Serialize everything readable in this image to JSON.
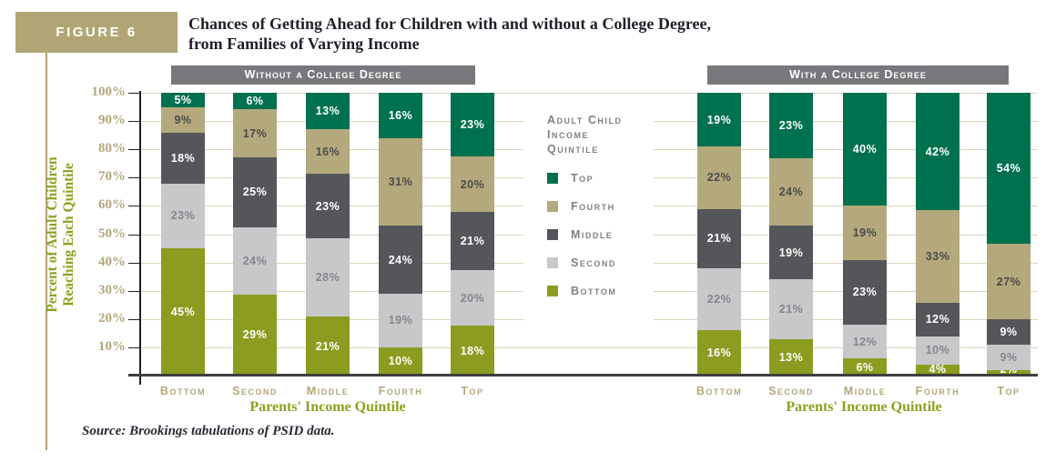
{
  "figure": {
    "label": "FIGURE 6",
    "title_line1": "Chances of Getting Ahead for Children with and without a College Degree,",
    "title_line2": "from Families of Varying Income",
    "source": "Source: Brookings tabulations of PSID data."
  },
  "colors": {
    "figure_box": "#b2a575",
    "panel_header_bg": "#77787b",
    "gridline": "#dbd5bd",
    "axis_line": "#231f20",
    "baseline": "#3f3f41",
    "tick_label": "#b2a77b",
    "axis_title_green": "#8fa01e",
    "legend_text": "#808184",
    "title_text": "#231f2b"
  },
  "chart_data": {
    "type": "bar",
    "stacked": true,
    "units": "percent",
    "title": "Chances of Getting Ahead for Children with and without a College Degree, from Families of Varying Income",
    "ylabel": "Percent of Adult Children Reaching Each Quintile",
    "ylabel_lines": [
      "Percent of Adult Children",
      "Reaching Each Quintile"
    ],
    "ylim": [
      0,
      100
    ],
    "yticks": [
      10,
      20,
      30,
      40,
      50,
      60,
      70,
      80,
      90,
      100
    ],
    "ytick_suffix": "%",
    "grid": true,
    "legend_position": "center-between-panels",
    "legend": {
      "title_lines": [
        "Adult Child",
        "Income",
        "Quintile"
      ],
      "entries": [
        {
          "label": "Top"
        },
        {
          "label": "Fourth"
        },
        {
          "label": "Middle"
        },
        {
          "label": "Second"
        },
        {
          "label": "Bottom"
        }
      ]
    },
    "stack_order_bottom_to_top": [
      "Bottom",
      "Second",
      "Middle",
      "Fourth",
      "Top"
    ],
    "series_colors": {
      "Bottom": "#8b9c20",
      "Second": "#c7c8ca",
      "Middle": "#55565a",
      "Fourth": "#b4a97c",
      "Top": "#00714f"
    },
    "value_label_colors": {
      "Bottom": "#ffffff",
      "Second": "#85868a",
      "Middle": "#ffffff",
      "Fourth": "#4a4b4d",
      "Top": "#ffffff"
    },
    "panels": [
      {
        "header": "Without a College Degree",
        "xlabel": "Parents' Income Quintile",
        "categories": [
          "Bottom",
          "Second",
          "Middle",
          "Fourth",
          "Top"
        ],
        "series": [
          {
            "name": "Bottom",
            "values": [
              45,
              29,
              21,
              10,
              18
            ]
          },
          {
            "name": "Second",
            "values": [
              23,
              24,
              28,
              19,
              20
            ]
          },
          {
            "name": "Middle",
            "values": [
              18,
              25,
              23,
              24,
              21
            ]
          },
          {
            "name": "Fourth",
            "values": [
              9,
              17,
              16,
              31,
              20
            ]
          },
          {
            "name": "Top",
            "values": [
              5,
              6,
              13,
              16,
              23
            ]
          }
        ]
      },
      {
        "header": "With a College Degree",
        "xlabel": "Parents' Income Quintile",
        "categories": [
          "Bottom",
          "Second",
          "Middle",
          "Fourth",
          "Top"
        ],
        "series": [
          {
            "name": "Bottom",
            "values": [
              16,
              13,
              6,
              4,
              2
            ]
          },
          {
            "name": "Second",
            "values": [
              22,
              21,
              12,
              10,
              9
            ]
          },
          {
            "name": "Middle",
            "values": [
              21,
              19,
              23,
              12,
              9
            ]
          },
          {
            "name": "Fourth",
            "values": [
              22,
              24,
              19,
              33,
              27
            ]
          },
          {
            "name": "Top",
            "values": [
              19,
              23,
              40,
              42,
              54
            ]
          }
        ]
      }
    ]
  }
}
